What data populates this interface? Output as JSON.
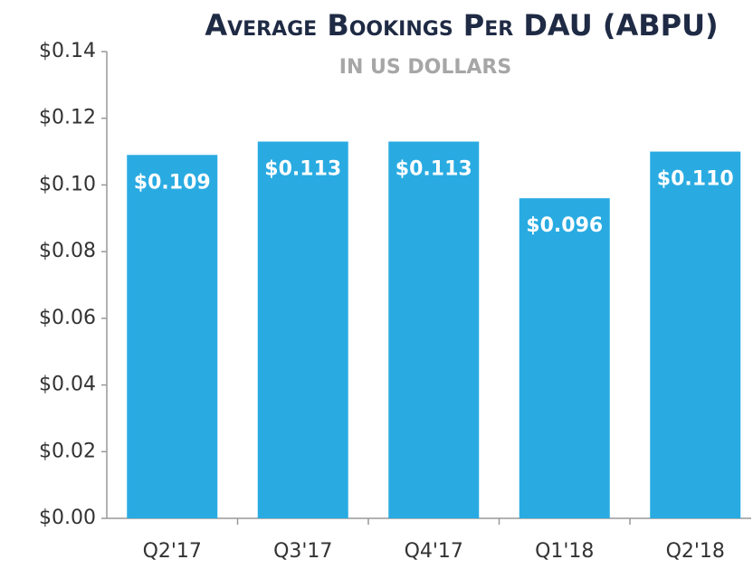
{
  "chart_data": {
    "type": "bar",
    "title": "Average Bookings Per DAU (ABPU)",
    "subtitle": "IN US DOLLARS",
    "categories": [
      "Q2'17",
      "Q3'17",
      "Q4'17",
      "Q1'18",
      "Q2'18"
    ],
    "values": [
      0.109,
      0.113,
      0.113,
      0.096,
      0.11
    ],
    "value_labels": [
      "$0.109",
      "$0.113",
      "$0.113",
      "$0.096",
      "$0.110"
    ],
    "color": "#29abe2",
    "ylim": [
      0,
      0.14
    ],
    "yticks": [
      {
        "value": 0,
        "label": "$0.00"
      },
      {
        "value": 0.02,
        "label": "$0.02"
      },
      {
        "value": 0.04,
        "label": "$0.04"
      },
      {
        "value": 0.06,
        "label": "$0.06"
      },
      {
        "value": 0.08,
        "label": "$0.08"
      },
      {
        "value": 0.1,
        "label": "$0.10"
      },
      {
        "value": 0.12,
        "label": "$0.12"
      },
      {
        "value": 0.14,
        "label": "$0.14"
      }
    ]
  }
}
